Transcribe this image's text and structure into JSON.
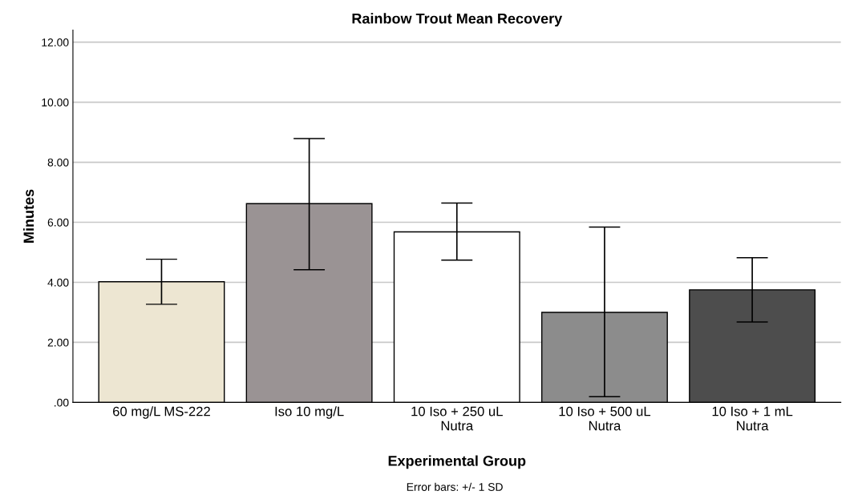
{
  "chart_data": {
    "type": "bar",
    "title": "Rainbow Trout Mean Recovery",
    "xlabel": "Experimental Group",
    "ylabel": "Minutes",
    "categories": [
      "60 mg/L MS-222",
      "Iso 10 mg/L",
      "10 Iso + 250 uL\nNutra",
      "10 Iso + 500 uL\nNutra",
      "10 Iso + 1 mL\nNutra"
    ],
    "values": [
      4.02,
      6.62,
      5.68,
      3.0,
      3.75
    ],
    "errors": [
      [
        3.27,
        4.77
      ],
      [
        4.42,
        8.79
      ],
      [
        4.74,
        6.64
      ],
      [
        0.19,
        5.84
      ],
      [
        2.68,
        4.82
      ]
    ],
    "colors": [
      "#ede6d2",
      "#9a9394",
      "#ffffff",
      "#8c8c8c",
      "#4d4d4d"
    ],
    "ylim": [
      0,
      12.4
    ],
    "yticks": [
      {
        "value": 0,
        "label": ".00"
      },
      {
        "value": 2,
        "label": "2.00"
      },
      {
        "value": 4,
        "label": "4.00"
      },
      {
        "value": 6,
        "label": "6.00"
      },
      {
        "value": 8,
        "label": "8.00"
      },
      {
        "value": 10,
        "label": "10.00"
      },
      {
        "value": 12,
        "label": "12.00"
      }
    ],
    "grid": "y",
    "annotations": [
      "Error bars: +/- 1 SD"
    ]
  }
}
